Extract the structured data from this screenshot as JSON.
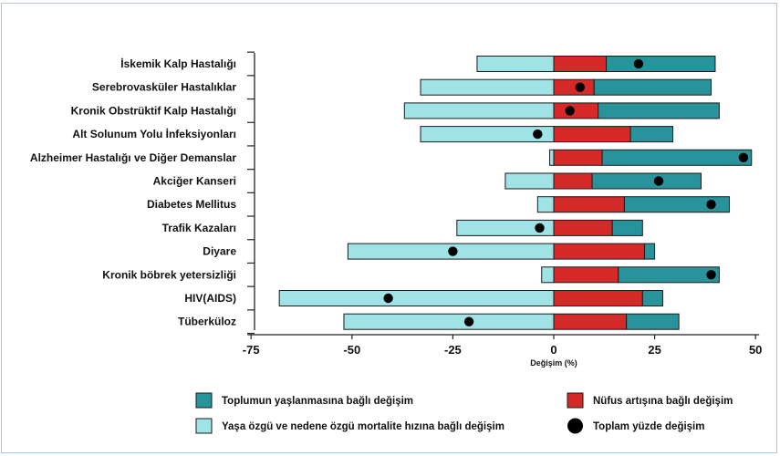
{
  "chart_data": {
    "type": "bar",
    "orientation": "horizontal",
    "stacked": "diverging",
    "categories": [
      "İskemik Kalp Hastalığı",
      "Serebrovasküler Hastalıklar",
      "Kronik Obstrüktif Kalp Hastalığı",
      "Alt Solunum Yolu İnfeksiyonları",
      "Alzheimer Hastalığı ve Diğer Demanslar",
      "Akciğer Kanseri",
      "Diabetes Mellitus",
      "Trafik Kazaları",
      "Diyare",
      "Kronik böbrek yetersizliği",
      "HIV(AIDS)",
      "Tüberküloz"
    ],
    "series": [
      {
        "name": "Yaşa özgü ve nedene özgü mortalite hızına bağlı değişim",
        "color": "#9fe3e6",
        "values": [
          -19,
          -33,
          -37,
          -33,
          -1,
          -12,
          -4,
          -24,
          -51,
          -3,
          -68,
          -52
        ]
      },
      {
        "name": "Nüfus artışına bağlı değişim",
        "color": "#d42a2a",
        "values": [
          13,
          10,
          11,
          19,
          12,
          9.5,
          17.5,
          14.5,
          22.5,
          16,
          22,
          18
        ]
      },
      {
        "name": "Toplumun yaşlanmasına bağlı değişim",
        "color": "#28939a",
        "values": [
          27,
          29,
          30,
          10.5,
          37,
          27,
          26,
          7.5,
          2.5,
          25,
          5,
          13
        ]
      }
    ],
    "total": {
      "name": "Toplam yüzde değişim",
      "values": [
        21,
        6.5,
        4,
        -4,
        47,
        26,
        39,
        -3.5,
        -25,
        39,
        -41,
        -21
      ]
    },
    "xticks": [
      -75,
      -50,
      -25,
      0,
      25,
      50
    ],
    "xlim": [
      -75,
      50
    ],
    "xlabel": "Değişim (%)",
    "legend_position": "bottom"
  }
}
